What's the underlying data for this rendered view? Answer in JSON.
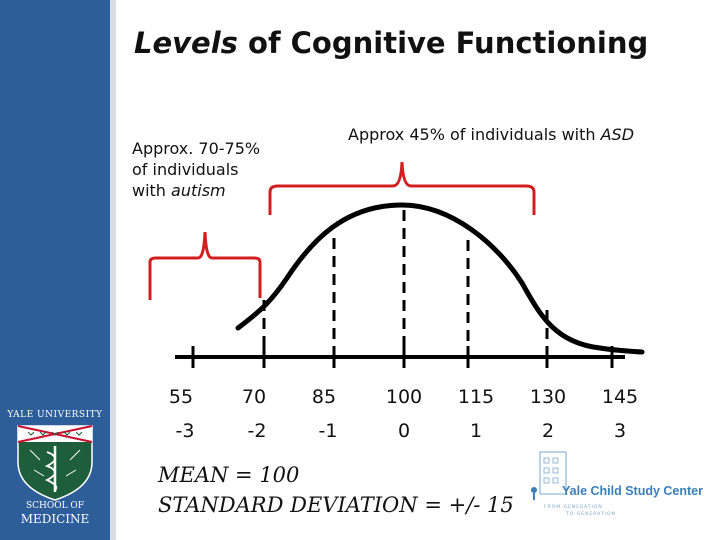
{
  "title": {
    "italic_part": "Levels",
    "rest": " of Cognitive Functioning"
  },
  "annotations": {
    "autism": {
      "line1": "Approx. 70-75%",
      "line2": "of individuals",
      "line3_prefix": "with ",
      "line3_italic": "autism"
    },
    "asd": {
      "prefix": "Approx 45% of individuals with ",
      "italic": "ASD"
    }
  },
  "iq_scores": [
    "55",
    "70",
    "85",
    "100",
    "115",
    "130",
    "145"
  ],
  "sd_values": [
    "-3",
    "-2",
    "-1",
    "0",
    "1",
    "2",
    "3"
  ],
  "summary": {
    "mean": "MEAN = 100",
    "sd": "STANDARD DEVIATION =  +/- 15"
  },
  "logos": {
    "yale_top": "YALE UNIVERSITY",
    "yale_bottom_1": "SCHOOL OF",
    "yale_bottom_2": "MEDICINE",
    "ycsc_name": "Yale Child Study Center",
    "ycsc_tag_1": "FROM GENERATION",
    "ycsc_tag_2": "TO GENERATION"
  },
  "colors": {
    "sidebar": "#2e5e9a",
    "bracket": "#d11f1f",
    "shield": "#1f5e3a",
    "shield_band": "#c8102e",
    "ycsc": "#3b7fb8"
  }
}
